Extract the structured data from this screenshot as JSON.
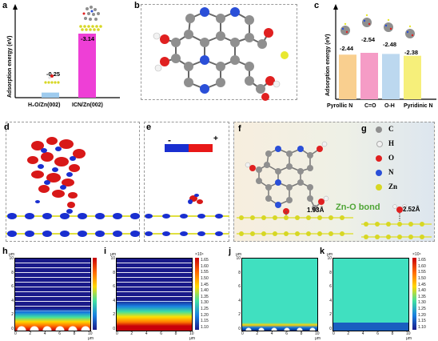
{
  "panels": {
    "a": "a",
    "b": "b",
    "c": "c",
    "d": "d",
    "e": "e",
    "f": "f",
    "g": "g",
    "h": "h",
    "i": "i",
    "j": "j",
    "k": "k"
  },
  "chart_data": [
    {
      "type": "bar",
      "panel": "a",
      "ylabel": "Adsorption energy (eV)",
      "categories": [
        "H₂O/Zn(002)",
        "ICN/Zn(002)"
      ],
      "values": [
        -0.25,
        -3.14
      ],
      "value_labels": [
        "-0.25",
        "-3.14"
      ],
      "colors": [
        "#9ecbee",
        "#ee3fd6"
      ]
    },
    {
      "type": "bar",
      "panel": "c",
      "ylabel": "Adsorption energy (eV)",
      "categories": [
        "Pyrollic N",
        "C=O",
        "O-H",
        "Pyridinic N"
      ],
      "values": [
        -2.44,
        -2.54,
        -2.48,
        -2.38
      ],
      "value_labels": [
        "-2.44",
        "-2.54",
        "-2.48",
        "-2.38"
      ],
      "colors": [
        "#f9cf8f",
        "#f59cc6",
        "#bcd8ef",
        "#f6ef7a"
      ]
    }
  ],
  "panel_e": {
    "minus": "-",
    "plus": "+"
  },
  "panel_f": {
    "bond_length_1": "1.93Å",
    "bond_label": "Zn-O bond",
    "bond_length_2": "2.52Å"
  },
  "legend_g": [
    {
      "symbol": "C",
      "color": "#8f8f8f"
    },
    {
      "symbol": "H",
      "color": "#f2f2f2"
    },
    {
      "symbol": "O",
      "color": "#e02020"
    },
    {
      "symbol": "N",
      "color": "#2a4fd8"
    },
    {
      "symbol": "Zn",
      "color": "#d7d724"
    }
  ],
  "sims": {
    "unit": "μm",
    "y_ticks": [
      "10",
      "8",
      "6",
      "4",
      "2",
      "0"
    ],
    "x_ticks": [
      "0",
      "2",
      "4",
      "6",
      "8",
      "10"
    ],
    "x_unit": "10 μm",
    "colorbar_exp": "×10⁴",
    "colorbar_ticks": [
      "1.65",
      "1.60",
      "1.55",
      "1.50",
      "1.45",
      "1.40",
      "1.35",
      "1.30",
      "1.25",
      "1.20",
      "1.15",
      "1.10"
    ]
  }
}
